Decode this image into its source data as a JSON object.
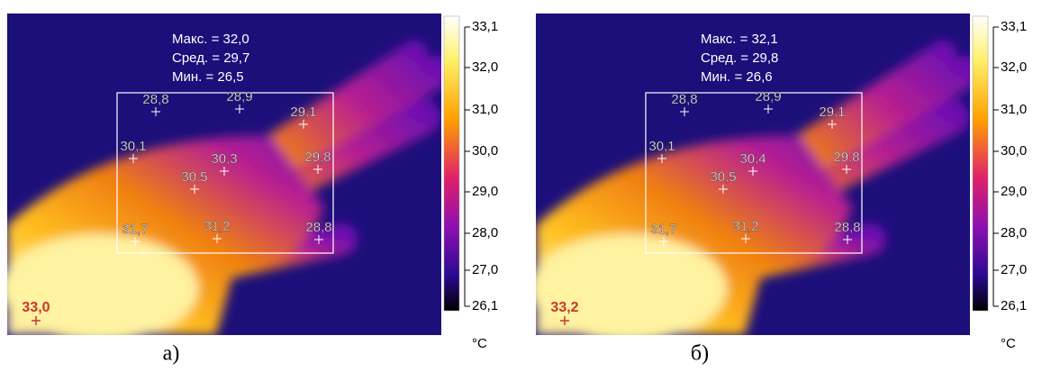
{
  "panels": [
    {
      "caption": "а)",
      "stats": [
        "Макс. = 32,0",
        "Сред. = 29,7",
        "Мин. = 26,5"
      ],
      "points": [
        "28,8",
        "28,9",
        "29,1",
        "30,1",
        "30,3",
        "29,8",
        "30,5",
        "31,7",
        "31,2",
        "28,8"
      ],
      "spot": "33,0",
      "scale": [
        "33,1",
        "32,0",
        "31,0",
        "30,0",
        "29,0",
        "28,0",
        "27,0",
        "26,1"
      ],
      "unit": "°C"
    },
    {
      "caption": "б)",
      "stats": [
        "Макс. = 32,1",
        "Сред. = 29,8",
        "Мин. = 26,6"
      ],
      "points": [
        "28,8",
        "28,9",
        "29,1",
        "30,1",
        "30,4",
        "29,8",
        "30,5",
        "31,7",
        "31,2",
        "28,8"
      ],
      "spot": "33,2",
      "scale": [
        "33,1",
        "32,0",
        "31,0",
        "30,0",
        "29,0",
        "28,0",
        "27,0",
        "26,1"
      ],
      "unit": "°C"
    }
  ]
}
